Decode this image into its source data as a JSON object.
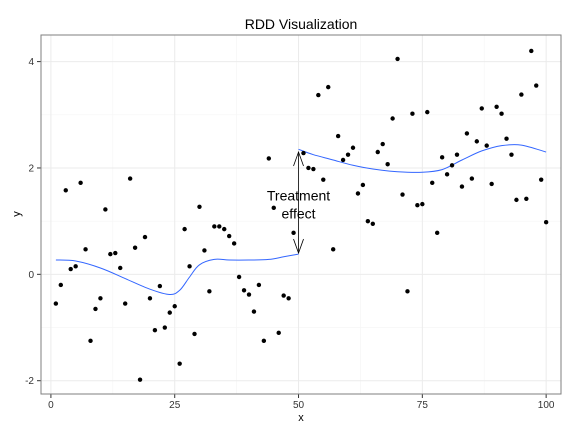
{
  "chart_data": {
    "type": "scatter",
    "title": "RDD Visualization",
    "xlabel": "x",
    "ylabel": "y",
    "xlim": [
      -2,
      103
    ],
    "ylim": [
      -2.25,
      4.5
    ],
    "x_ticks": [
      0,
      25,
      50,
      75,
      100
    ],
    "y_ticks": [
      -2,
      0,
      2,
      4
    ],
    "grid": true,
    "cutoff": 50,
    "annotation": {
      "lines": [
        "Treatment",
        "effect"
      ],
      "x": 50,
      "y_top": 2.3,
      "y_bottom": 0.4
    },
    "points": [
      [
        1,
        -0.55
      ],
      [
        2,
        -0.2
      ],
      [
        3,
        1.58
      ],
      [
        4,
        0.1
      ],
      [
        5,
        0.15
      ],
      [
        6,
        1.72
      ],
      [
        7,
        0.47
      ],
      [
        8,
        -1.25
      ],
      [
        9,
        -0.65
      ],
      [
        10,
        -0.45
      ],
      [
        11,
        1.22
      ],
      [
        12,
        0.38
      ],
      [
        13,
        0.4
      ],
      [
        14,
        0.12
      ],
      [
        15,
        -0.55
      ],
      [
        16,
        1.8
      ],
      [
        17,
        0.5
      ],
      [
        18,
        -1.98
      ],
      [
        19,
        0.7
      ],
      [
        20,
        -0.45
      ],
      [
        21,
        -1.05
      ],
      [
        22,
        -0.22
      ],
      [
        23,
        -1.0
      ],
      [
        24,
        -0.72
      ],
      [
        25,
        -0.6
      ],
      [
        26,
        -1.68
      ],
      [
        27,
        0.85
      ],
      [
        28,
        0.15
      ],
      [
        29,
        -1.12
      ],
      [
        30,
        1.27
      ],
      [
        31,
        0.45
      ],
      [
        32,
        -0.32
      ],
      [
        33,
        0.9
      ],
      [
        34,
        0.9
      ],
      [
        35,
        0.85
      ],
      [
        36,
        0.72
      ],
      [
        37,
        0.58
      ],
      [
        38,
        -0.05
      ],
      [
        39,
        -0.3
      ],
      [
        40,
        -0.38
      ],
      [
        41,
        -0.7
      ],
      [
        42,
        -0.2
      ],
      [
        43,
        -1.25
      ],
      [
        44,
        2.18
      ],
      [
        45,
        1.25
      ],
      [
        46,
        -1.1
      ],
      [
        47,
        -0.4
      ],
      [
        48,
        -0.45
      ],
      [
        49,
        0.78
      ],
      [
        51,
        2.28
      ],
      [
        52,
        2.0
      ],
      [
        53,
        1.98
      ],
      [
        54,
        3.37
      ],
      [
        55,
        1.78
      ],
      [
        56,
        3.52
      ],
      [
        57,
        0.47
      ],
      [
        58,
        2.6
      ],
      [
        59,
        2.15
      ],
      [
        60,
        2.25
      ],
      [
        61,
        2.38
      ],
      [
        62,
        1.52
      ],
      [
        63,
        1.68
      ],
      [
        64,
        1.0
      ],
      [
        65,
        0.95
      ],
      [
        66,
        2.3
      ],
      [
        67,
        2.45
      ],
      [
        68,
        2.07
      ],
      [
        69,
        2.93
      ],
      [
        70,
        4.05
      ],
      [
        71,
        1.5
      ],
      [
        72,
        -0.32
      ],
      [
        73,
        3.02
      ],
      [
        74,
        1.3
      ],
      [
        75,
        1.32
      ],
      [
        76,
        3.05
      ],
      [
        77,
        1.72
      ],
      [
        78,
        0.78
      ],
      [
        79,
        2.2
      ],
      [
        80,
        1.88
      ],
      [
        81,
        2.05
      ],
      [
        82,
        2.25
      ],
      [
        83,
        1.65
      ],
      [
        84,
        2.65
      ],
      [
        85,
        1.8
      ],
      [
        86,
        2.5
      ],
      [
        87,
        3.12
      ],
      [
        88,
        2.42
      ],
      [
        89,
        1.7
      ],
      [
        90,
        3.15
      ],
      [
        91,
        3.02
      ],
      [
        92,
        2.55
      ],
      [
        93,
        2.25
      ],
      [
        94,
        1.4
      ],
      [
        95,
        3.38
      ],
      [
        96,
        1.42
      ],
      [
        97,
        4.2
      ],
      [
        98,
        3.55
      ],
      [
        99,
        1.78
      ],
      [
        100,
        0.98
      ]
    ],
    "fit_left": [
      [
        1,
        0.27
      ],
      [
        5,
        0.25
      ],
      [
        10,
        0.12
      ],
      [
        15,
        -0.08
      ],
      [
        20,
        -0.28
      ],
      [
        24,
        -0.38
      ],
      [
        26,
        -0.3
      ],
      [
        28,
        -0.05
      ],
      [
        30,
        0.18
      ],
      [
        33,
        0.28
      ],
      [
        36,
        0.27
      ],
      [
        40,
        0.27
      ],
      [
        44,
        0.28
      ],
      [
        47,
        0.33
      ],
      [
        50,
        0.38
      ]
    ],
    "fit_right": [
      [
        50,
        2.35
      ],
      [
        53,
        2.25
      ],
      [
        57,
        2.15
      ],
      [
        61,
        2.05
      ],
      [
        65,
        1.98
      ],
      [
        70,
        1.93
      ],
      [
        75,
        1.92
      ],
      [
        79,
        1.97
      ],
      [
        83,
        2.15
      ],
      [
        87,
        2.32
      ],
      [
        91,
        2.42
      ],
      [
        95,
        2.43
      ],
      [
        100,
        2.3
      ]
    ],
    "colors": {
      "fit": "#3366ff",
      "points": "#000000",
      "grid": "#ebebeb",
      "panel_border": "#7f7f7f"
    }
  }
}
